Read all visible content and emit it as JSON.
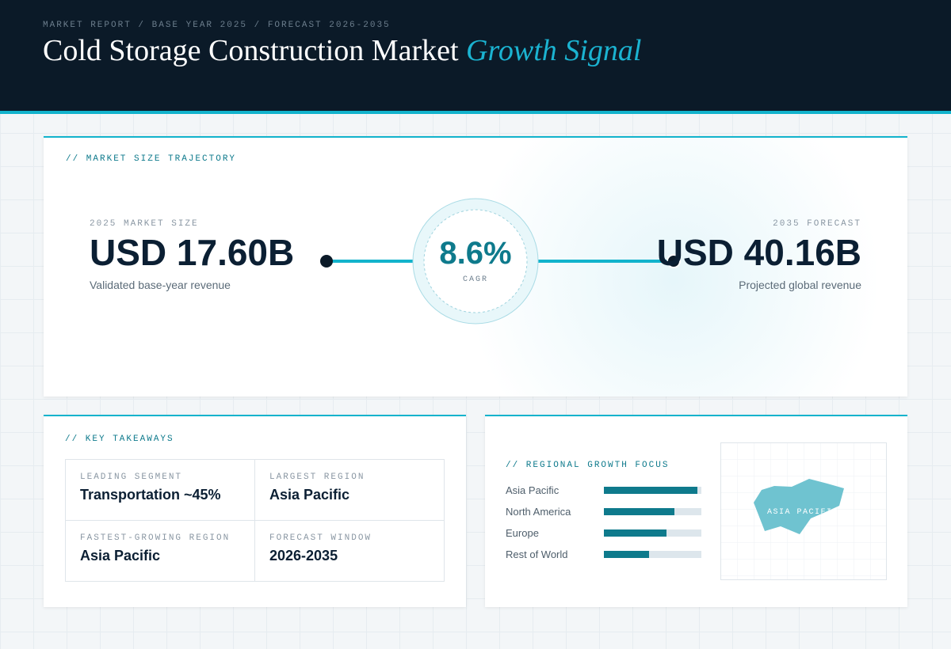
{
  "header": {
    "eyebrow": "MARKET REPORT / BASE YEAR 2025 / FORECAST 2026-2035",
    "title": "Cold Storage Construction Market",
    "title_accent": "Growth Signal"
  },
  "trajectory": {
    "label": "// MARKET SIZE TRAJECTORY",
    "start": {
      "label": "2025 MARKET SIZE",
      "value": "USD 17.60B",
      "note": "Validated base-year revenue"
    },
    "cagr": {
      "value": "8.6%",
      "label": "CAGR"
    },
    "end": {
      "label": "2035 FORECAST",
      "value": "USD 40.16B",
      "note": "Projected global revenue"
    }
  },
  "takeaways": {
    "label": "// KEY TAKEAWAYS",
    "items": [
      {
        "label": "LEADING SEGMENT",
        "value": "Transportation ~45%"
      },
      {
        "label": "LARGEST REGION",
        "value": "Asia Pacific"
      },
      {
        "label": "FASTEST-GROWING REGION",
        "value": "Asia Pacific"
      },
      {
        "label": "FORECAST WINDOW",
        "value": "2026-2035"
      }
    ]
  },
  "regional": {
    "label": "// REGIONAL GROWTH FOCUS",
    "categories": [
      "Asia Pacific",
      "North America",
      "Europe",
      "Rest of World"
    ],
    "values": [
      96,
      72,
      64,
      46
    ],
    "xlim": [
      0,
      100
    ],
    "map_label": "ASIA PACIFIC"
  }
}
